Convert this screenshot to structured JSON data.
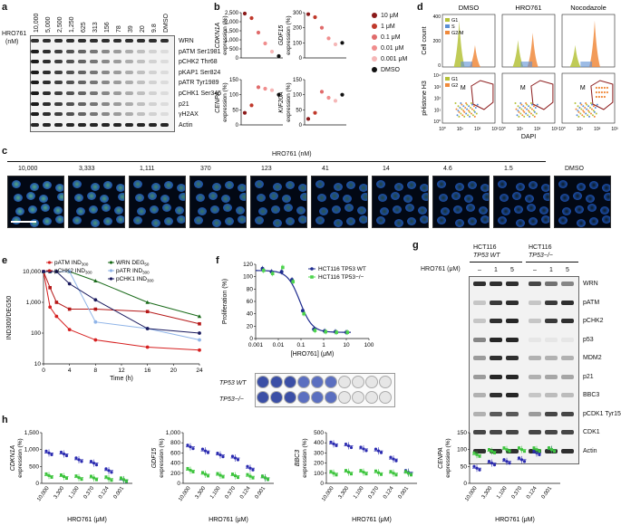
{
  "panel_labels": {
    "a": "a",
    "b": "b",
    "c": "c",
    "d": "d",
    "e": "e",
    "f": "f",
    "g": "g",
    "h": "h"
  },
  "panel_a": {
    "ylabel_line1": "HRO761",
    "ylabel_line2": "(nM)",
    "lanes": [
      "10,000",
      "5,000",
      "2,500",
      "1,250",
      "625",
      "313",
      "156",
      "78",
      "39",
      "20",
      "9.8",
      "DMSO"
    ],
    "rows": [
      "WRN",
      "pATM Ser1981",
      "pCHK2 Thr68",
      "pKAP1 Ser824",
      "pATR Tyr1989",
      "pCHK1 Ser345",
      "p21",
      "γH2AX",
      "Actin"
    ]
  },
  "panel_b": {
    "legend": [
      "10 μM",
      "1 μM",
      "0.1 μM",
      "0.01 μM",
      "0.001 μM",
      "DMSO"
    ],
    "legend_colors": [
      "#8b1a1a",
      "#c0392b",
      "#e06b6b",
      "#f08d8d",
      "#f5b7b7",
      "#111111"
    ],
    "charts": [
      {
        "gene": "CDKN1A",
        "unit": "expression (%)",
        "yticks": [
          "2,500",
          "2,000",
          "1,500",
          "1,000",
          "500",
          "0"
        ],
        "ylim": [
          0,
          2500
        ],
        "values": [
          2450,
          2200,
          1400,
          800,
          350,
          100
        ]
      },
      {
        "gene": "GDF15",
        "unit": "expression (%)",
        "yticks": [
          "300",
          "200",
          "100",
          "0"
        ],
        "ylim": [
          0,
          300
        ],
        "values": [
          290,
          270,
          200,
          130,
          90,
          100
        ]
      },
      {
        "gene": "CENPA",
        "unit": "expression (%)",
        "yticks": [
          "150",
          "100",
          "50",
          "0"
        ],
        "ylim": [
          0,
          150
        ],
        "values": [
          40,
          65,
          125,
          120,
          115,
          100
        ]
      },
      {
        "gene": "KIF20A",
        "unit": "expression (%)",
        "yticks": [
          "150",
          "100",
          "50",
          "0"
        ],
        "ylim": [
          0,
          150
        ],
        "values": [
          20,
          40,
          110,
          90,
          80,
          100
        ]
      }
    ]
  },
  "panel_c": {
    "title": "HRO761 (nM)",
    "labels": [
      "10,000",
      "3,333",
      "1,111",
      "370",
      "123",
      "41",
      "14",
      "4.6",
      "1.5",
      "DMSO"
    ]
  },
  "panel_d": {
    "columns": [
      "DMSO",
      "HRO761",
      "Nocodazole"
    ],
    "top_ylabel": "Cell count",
    "bottom_ylabel": "pHistone H3",
    "xlabel": "DAPI",
    "legend_top": [
      "G1",
      "S",
      "G2/M"
    ],
    "legend_bottom": [
      "G1",
      "G2"
    ],
    "gate_label": "M",
    "top_yticks": [
      "400",
      "200",
      "0"
    ],
    "bottom_yticks": [
      "10⁴",
      "10³",
      "10²",
      "10¹",
      "10⁰"
    ],
    "xticks": [
      "10⁰",
      "10¹",
      "10²",
      "10³"
    ],
    "colors": {
      "G1": "#b5c23a",
      "S": "#5b8fd4",
      "G2M": "#f08a3c"
    }
  },
  "panel_e": {
    "chart_data": {
      "type": "line",
      "xlabel": "Time (h)",
      "ylabel": "IND300/DEG50",
      "xticks": [
        "0",
        "4",
        "8",
        "12",
        "16",
        "20",
        "24"
      ],
      "yticks": [
        "10,000",
        "1,000",
        "100",
        "10"
      ],
      "x": [
        0,
        1,
        2,
        4,
        8,
        16,
        24
      ],
      "series": [
        {
          "name": "pATM IND300",
          "color": "#d62020",
          "values": [
            10000,
            700,
            350,
            130,
            60,
            35,
            28
          ]
        },
        {
          "name": "pCHK2 IND300",
          "color": "#b51818",
          "values": [
            10000,
            3000,
            1000,
            600,
            600,
            500,
            200
          ]
        },
        {
          "name": "WRN DEG50",
          "color": "#1a6b1a",
          "values": [
            10000,
            10000,
            10000,
            10000,
            5000,
            1000,
            350
          ]
        },
        {
          "name": "pATR IND300",
          "color": "#8fb4e8",
          "values": [
            10000,
            10000,
            10000,
            10000,
            230,
            140,
            60
          ]
        },
        {
          "name": "pCHK1 IND300",
          "color": "#1a1a5e",
          "values": [
            10000,
            10000,
            10000,
            4000,
            1200,
            140,
            100
          ]
        }
      ],
      "legend": [
        "pATM IND",
        "pCHK2 IND",
        "WRN DEG",
        "pATR IND",
        "pCHK1 IND"
      ],
      "legend_sub": [
        "300",
        "300",
        "50",
        "300",
        "300"
      ]
    }
  },
  "panel_f": {
    "chart_data": {
      "type": "line",
      "xlabel": "[HRO761] (μM)",
      "ylabel": "Proliferation (%)",
      "xticks": [
        "0.001",
        "0.01",
        "0.1",
        "1",
        "10",
        "100"
      ],
      "yticks": [
        "120",
        "100",
        "80",
        "60",
        "40",
        "20",
        "0"
      ],
      "x": [
        0.002,
        0.005,
        0.014,
        0.04,
        0.12,
        0.37,
        1.1,
        3.3,
        10
      ],
      "series": [
        {
          "name": "HCT116 TP53 WT",
          "color": "#1f2c8f",
          "values": [
            113,
            108,
            108,
            95,
            45,
            15,
            12,
            11,
            10
          ]
        },
        {
          "name": "HCT116 TP53−/−",
          "color": "#4cd44c",
          "values": [
            110,
            105,
            115,
            92,
            40,
            13,
            11,
            10,
            10
          ]
        }
      ],
      "legend": [
        "HCT116 TP53 WT",
        "HCT116 TP53−/−"
      ]
    },
    "row_labels": [
      "TP53 WT",
      "TP53−/−"
    ]
  },
  "panel_g": {
    "group1": "HCT116",
    "group1_sub": "TP53 WT",
    "group2": "HCT116",
    "group2_sub": "TP53−/−",
    "treatment_label": "HRO761 (μM)",
    "lanes": [
      "–",
      "1",
      "5",
      "–",
      "1",
      "5"
    ],
    "rows": [
      "WRN",
      "pATM",
      "pCHK2",
      "p53",
      "MDM2",
      "p21",
      "BBC3",
      "pCDK1 Tyr15",
      "CDK1",
      "Actin"
    ]
  },
  "panel_h": {
    "xlabel": "HRO761 (μM)",
    "xticks": [
      "10,000",
      "3,300",
      "1,100",
      "0.370",
      "0.124",
      "0.001"
    ],
    "wt_color": "#2a2ab0",
    "ko_color": "#3cc43c",
    "charts": [
      {
        "gene": "CDKN1A",
        "unit": "expression (%)",
        "yticks": [
          "1,500",
          "1,000",
          "500",
          "0"
        ],
        "ylim": [
          0,
          1500
        ],
        "wt": [
          900,
          870,
          700,
          600,
          380,
          100
        ],
        "ko": [
          230,
          200,
          170,
          160,
          140,
          110
        ]
      },
      {
        "gene": "GDF15",
        "unit": "expression (%)",
        "yticks": [
          "1,000",
          "800",
          "600",
          "400",
          "200",
          "0"
        ],
        "ylim": [
          0,
          1000
        ],
        "wt": [
          720,
          640,
          560,
          500,
          300,
          110
        ],
        "ko": [
          260,
          180,
          160,
          150,
          140,
          110
        ]
      },
      {
        "gene": "BBC3",
        "unit": "expression (%)",
        "yticks": [
          "500",
          "400",
          "300",
          "200",
          "100",
          "0"
        ],
        "ylim": [
          0,
          500
        ],
        "wt": [
          390,
          370,
          340,
          320,
          240,
          110
        ],
        "ko": [
          100,
          110,
          110,
          105,
          100,
          100
        ]
      },
      {
        "gene": "CENPA",
        "unit": "expression (%)",
        "yticks": [
          "150",
          "100",
          "50",
          "0"
        ],
        "ylim": [
          0,
          150
        ],
        "wt": [
          45,
          60,
          65,
          70,
          90,
          100
        ],
        "ko": [
          85,
          95,
          100,
          100,
          100,
          100
        ]
      }
    ]
  }
}
